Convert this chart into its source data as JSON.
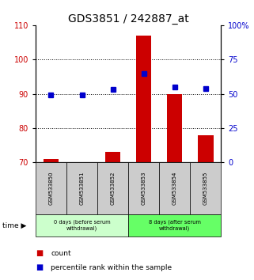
{
  "title": "GDS3851 / 242887_at",
  "samples": [
    "GSM533850",
    "GSM533851",
    "GSM533852",
    "GSM533853",
    "GSM533854",
    "GSM533855"
  ],
  "counts": [
    71,
    70,
    73,
    107,
    90,
    78
  ],
  "percentiles": [
    49,
    49,
    53,
    65,
    55,
    54
  ],
  "ylim_left": [
    70,
    110
  ],
  "ylim_right": [
    0,
    100
  ],
  "yticks_left": [
    70,
    80,
    90,
    100,
    110
  ],
  "yticks_right": [
    0,
    25,
    50,
    75,
    100
  ],
  "ytick_labels_right": [
    "0",
    "25",
    "50",
    "75",
    "100%"
  ],
  "bar_color": "#cc0000",
  "dot_color": "#0000cc",
  "group1_label": "0 days (before serum\nwithdrawal)",
  "group2_label": "8 days (after serum\nwithdrawal)",
  "group1_indices": [
    0,
    1,
    2
  ],
  "group2_indices": [
    3,
    4,
    5
  ],
  "group1_color": "#ccffcc",
  "group2_color": "#66ff66",
  "sample_box_color": "#cccccc",
  "time_label": "time",
  "legend_count_label": "count",
  "legend_pct_label": "percentile rank within the sample",
  "title_fontsize": 10,
  "tick_fontsize": 7,
  "label_fontsize": 6
}
